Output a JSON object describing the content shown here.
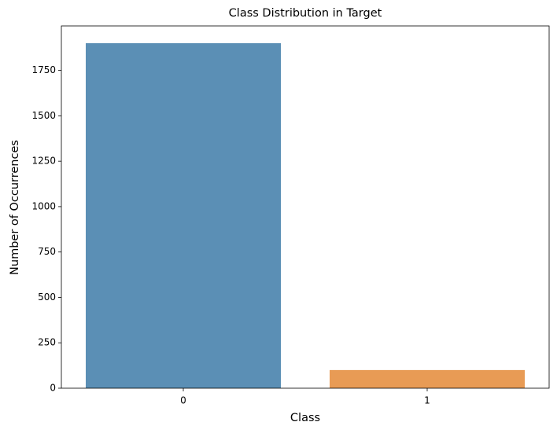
{
  "chart_data": {
    "type": "bar",
    "title": "Class Distribution in Target",
    "x_label": "Class",
    "y_label": "Number of Occurrences",
    "categories": [
      "0",
      "1"
    ],
    "values": [
      1900,
      100
    ],
    "colors": [
      "#5b8fb5",
      "#e89b55"
    ],
    "ylim": [
      0,
      1995
    ],
    "yticks": [
      0,
      250,
      500,
      750,
      1000,
      1250,
      1500,
      1750
    ]
  }
}
